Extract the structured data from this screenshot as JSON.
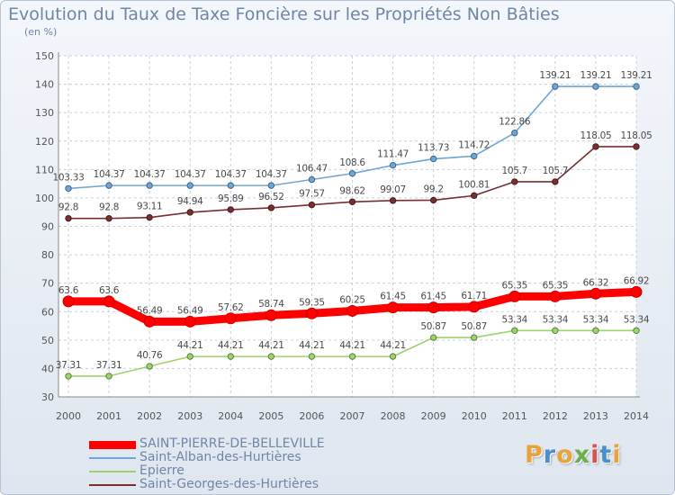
{
  "chart_data": {
    "type": "line",
    "title": "Evolution du Taux de Taxe Foncière sur les Propriétés Non Bâties",
    "subtitle": "(en %)",
    "x": [
      "2000",
      "2001",
      "2002",
      "2003",
      "2004",
      "2005",
      "2006",
      "2007",
      "2008",
      "2009",
      "2010",
      "2011",
      "2012",
      "2013",
      "2014"
    ],
    "yticks": [
      "30",
      "40",
      "50",
      "60",
      "70",
      "80",
      "90",
      "100",
      "110",
      "120",
      "130",
      "140",
      "150"
    ],
    "ylim": [
      30,
      150
    ],
    "grid": true,
    "legend_position": "bottom-left",
    "series": [
      {
        "name": "SAINT-PIERRE-DE-BELLEVILLE",
        "color": "#ff0000",
        "values": [
          63.6,
          63.6,
          56.49,
          56.49,
          57.62,
          58.74,
          59.35,
          60.25,
          61.45,
          61.45,
          61.71,
          65.35,
          65.35,
          66.32,
          66.92
        ],
        "labels": [
          "63.6",
          "63.6",
          "56.49",
          "56.49",
          "57.62",
          "58.74",
          "59.35",
          "60.25",
          "61.45",
          "61.45",
          "61.71",
          "65.35",
          "65.35",
          "66.32",
          "66.92"
        ]
      },
      {
        "name": "Saint-Alban-des-Hurtières",
        "color": "#6fa6d8",
        "values": [
          103.33,
          104.37,
          104.37,
          104.37,
          104.37,
          104.37,
          106.47,
          108.6,
          111.47,
          113.73,
          114.72,
          122.86,
          139.21,
          139.21,
          139.21
        ],
        "labels": [
          "103.33",
          "104.37",
          "104.37",
          "104.37",
          "104.37",
          "104.37",
          "106.47",
          "108.6",
          "111.47",
          "113.73",
          "114.72",
          "122.86",
          "139.21",
          "139.21",
          "139.21"
        ]
      },
      {
        "name": "Epierre",
        "color": "#9cd46a",
        "values": [
          37.31,
          37.31,
          40.76,
          44.21,
          44.21,
          44.21,
          44.21,
          44.21,
          44.21,
          50.87,
          50.87,
          53.34,
          53.34,
          53.34,
          53.34
        ],
        "labels": [
          "37.31",
          "37.31",
          "40.76",
          "44.21",
          "44.21",
          "44.21",
          "44.21",
          "44.21",
          "44.21",
          "50.87",
          "50.87",
          "53.34",
          "53.34",
          "53.34",
          "53.34"
        ]
      },
      {
        "name": "Saint-Georges-des-Hurtières",
        "color": "#7a2e2e",
        "values": [
          92.8,
          92.8,
          93.11,
          94.94,
          95.89,
          96.52,
          97.57,
          98.62,
          99.07,
          99.2,
          100.81,
          105.7,
          105.7,
          118.05,
          118.05
        ],
        "labels": [
          "92.8",
          "92.8",
          "93.11",
          "94.94",
          "95.89",
          "96.52",
          "97.57",
          "98.62",
          "99.07",
          "99.2",
          "100.81",
          "105.7",
          "105.7",
          "118.05",
          "118.05"
        ]
      }
    ]
  },
  "logo": {
    "letters": [
      "P",
      "r",
      "o",
      "x",
      "i",
      "t",
      "i"
    ],
    "colors": [
      "#e8a33a",
      "#4a90c8",
      "#e8a33a",
      "#6ab04c",
      "#d9534f",
      "#4a90c8",
      "#e8a33a"
    ]
  }
}
